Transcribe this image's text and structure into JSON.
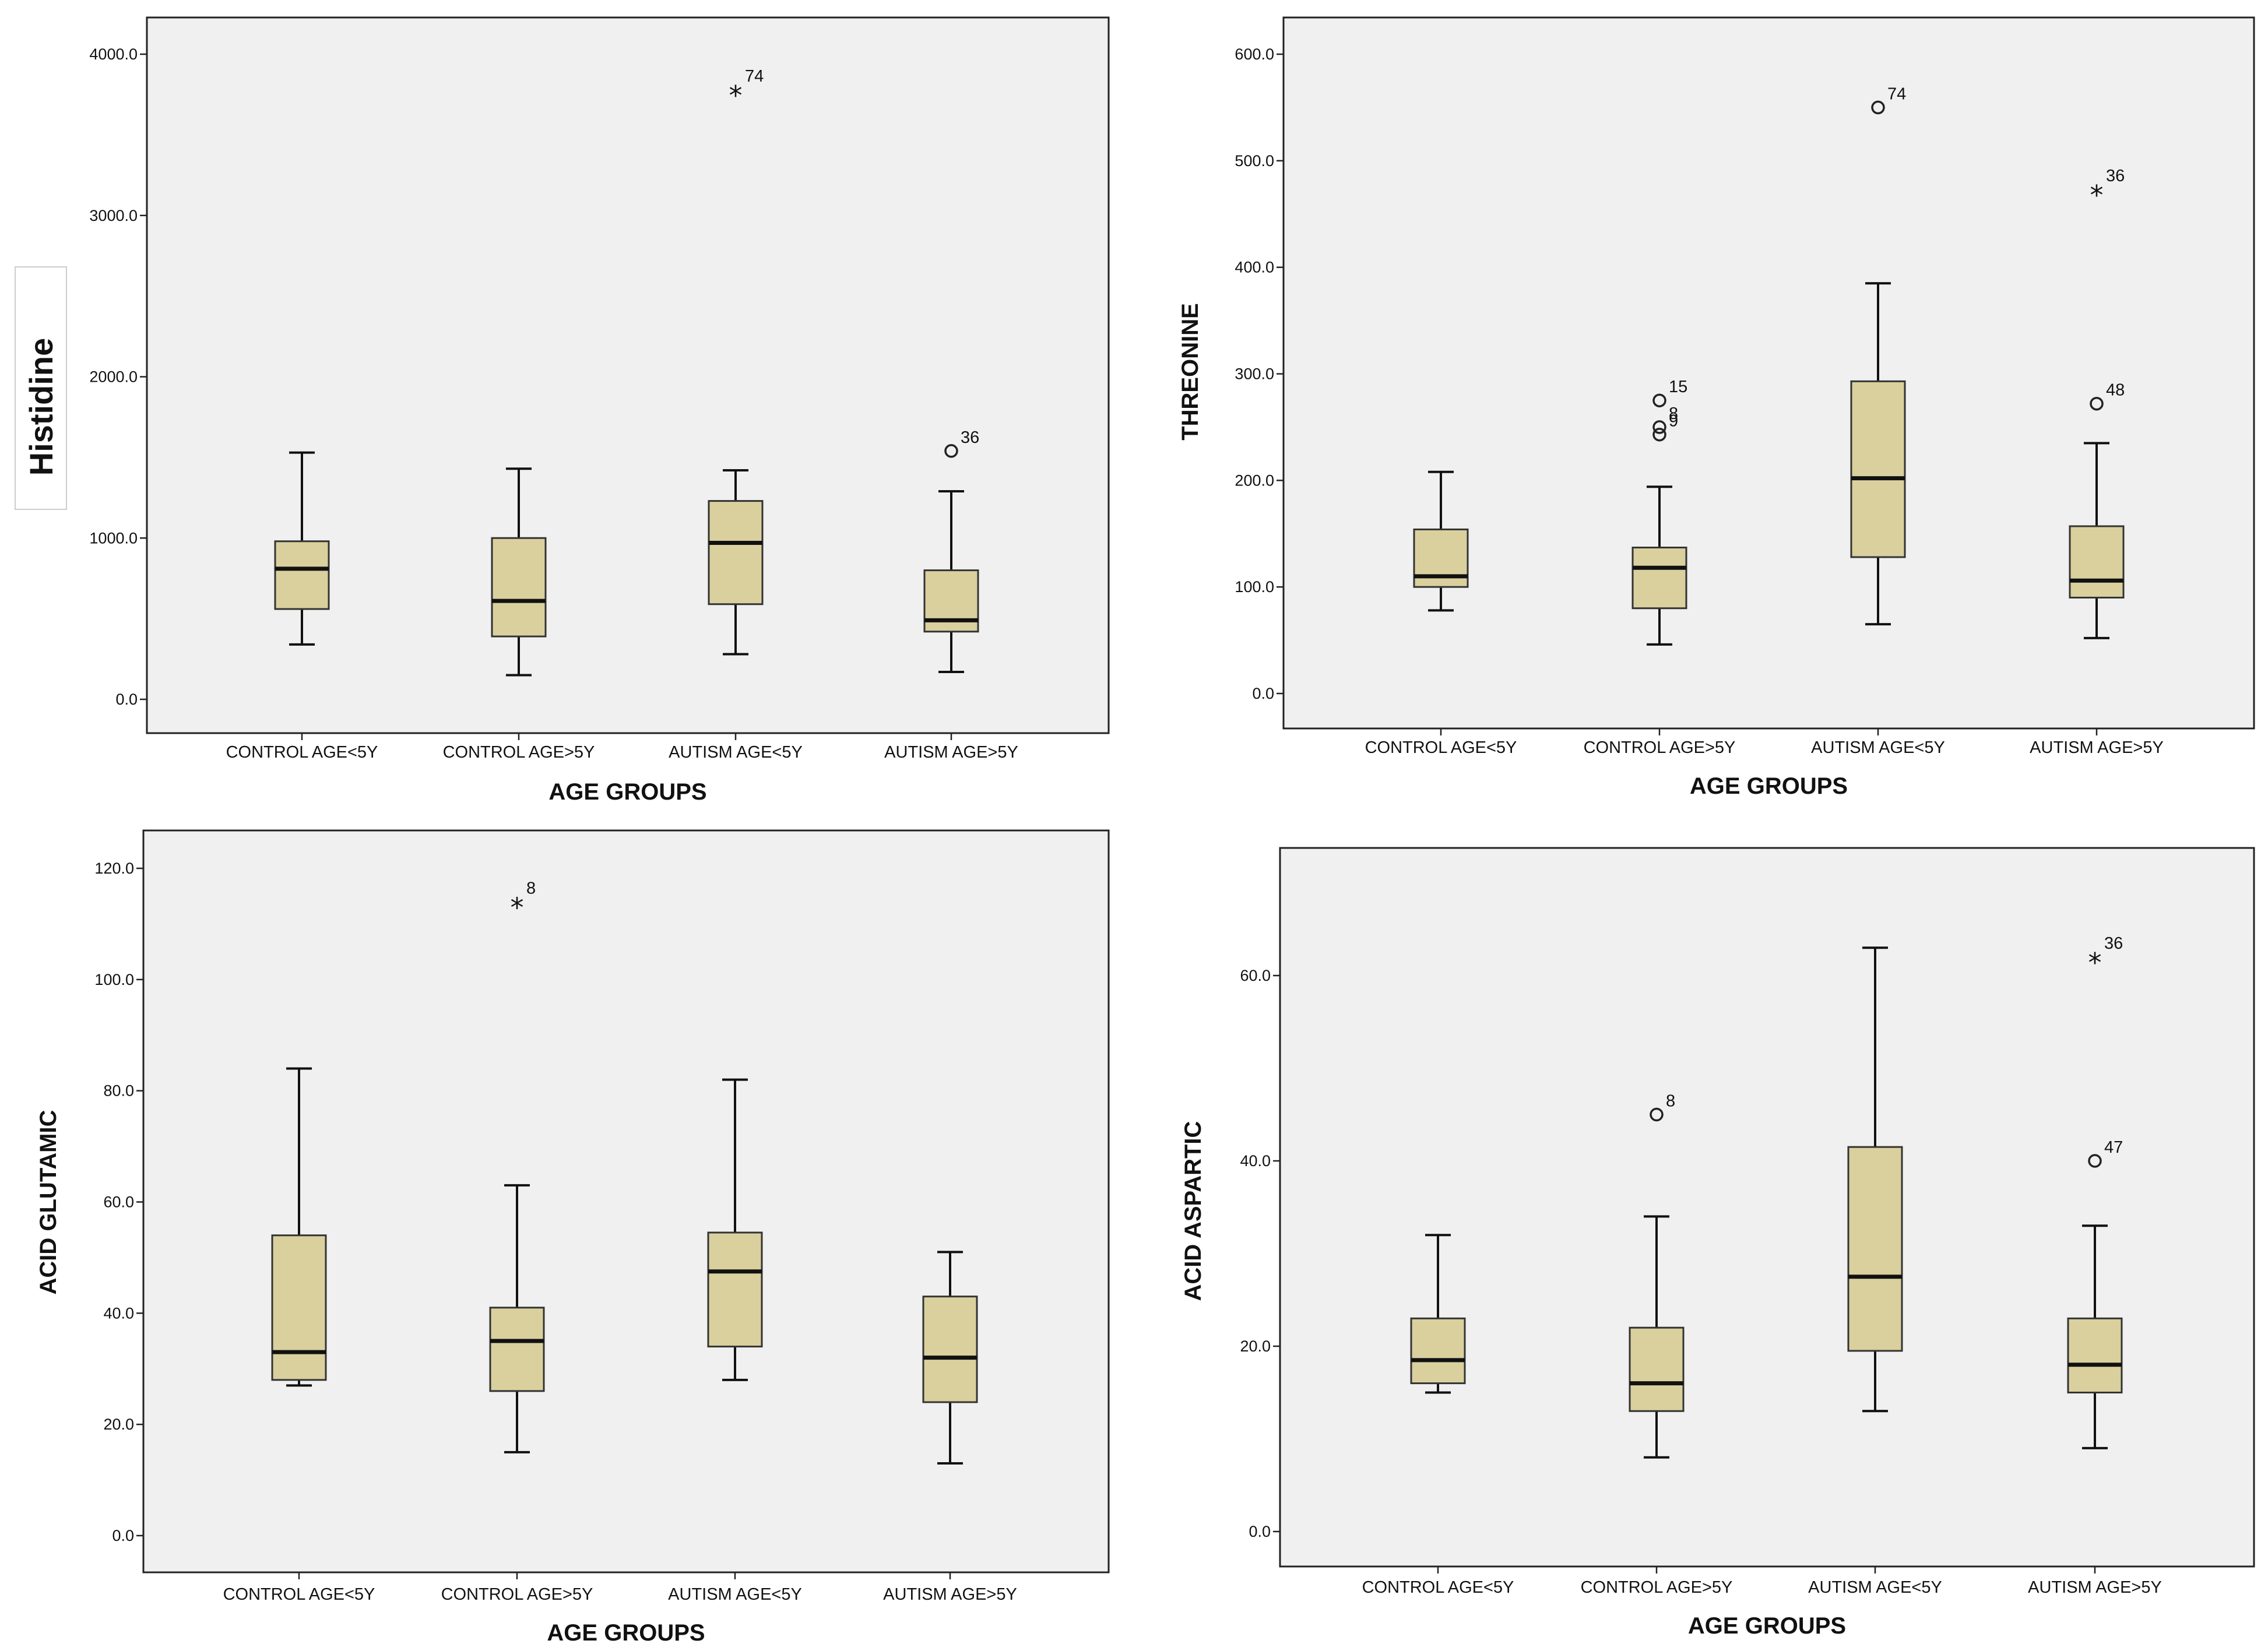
{
  "chart_data": [
    {
      "type": "boxplot",
      "xlabel": "AGE GROUPS",
      "ylabel": "Histidine",
      "ylim": [
        0,
        4000
      ],
      "yticks": [
        0,
        1000,
        2000,
        3000,
        4000
      ],
      "ytick_labels": [
        "0.0",
        "1000.0",
        "2000.0",
        "3000.0",
        "4000.0"
      ],
      "categories": [
        "CONTROL AGE<5Y",
        "CONTROL AGE>5Y",
        "AUTISM AGE<5Y",
        "AUTISM AGE>5Y"
      ],
      "boxes": [
        {
          "min": 340,
          "q1": 560,
          "median": 810,
          "q3": 980,
          "max": 1530
        },
        {
          "min": 150,
          "q1": 390,
          "median": 610,
          "q3": 1000,
          "max": 1430
        },
        {
          "min": 280,
          "q1": 590,
          "median": 970,
          "q3": 1230,
          "max": 1420
        },
        {
          "min": 170,
          "q1": 420,
          "median": 490,
          "q3": 800,
          "max": 1290
        }
      ],
      "outliers": [
        {
          "category": 2,
          "value": 3780,
          "label": "74",
          "marker": "star"
        },
        {
          "category": 3,
          "value": 1540,
          "label": "36",
          "marker": "circle"
        }
      ]
    },
    {
      "type": "boxplot",
      "xlabel": "AGE GROUPS",
      "ylabel": "THREONINE",
      "ylim": [
        0,
        600
      ],
      "yticks": [
        0,
        100,
        200,
        300,
        400,
        500,
        600
      ],
      "ytick_labels": [
        "0.0",
        "100.0",
        "200.0",
        "300.0",
        "400.0",
        "500.0",
        "600.0"
      ],
      "categories": [
        "CONTROL AGE<5Y",
        "CONTROL AGE>5Y",
        "AUTISM AGE<5Y",
        "AUTISM AGE>5Y"
      ],
      "boxes": [
        {
          "min": 78,
          "q1": 100,
          "median": 110,
          "q3": 154,
          "max": 208
        },
        {
          "min": 46,
          "q1": 80,
          "median": 118,
          "q3": 137,
          "max": 194
        },
        {
          "min": 65,
          "q1": 128,
          "median": 202,
          "q3": 293,
          "max": 385
        },
        {
          "min": 52,
          "q1": 90,
          "median": 106,
          "q3": 157,
          "max": 235
        }
      ],
      "outliers": [
        {
          "category": 1,
          "value": 275,
          "label": "15",
          "marker": "circle"
        },
        {
          "category": 1,
          "value": 250,
          "label": "8",
          "marker": "circle"
        },
        {
          "category": 1,
          "value": 243,
          "label": "9",
          "marker": "circle"
        },
        {
          "category": 2,
          "value": 550,
          "label": "74",
          "marker": "circle"
        },
        {
          "category": 3,
          "value": 473,
          "label": "36",
          "marker": "star"
        },
        {
          "category": 3,
          "value": 272,
          "label": "48",
          "marker": "circle"
        }
      ]
    },
    {
      "type": "boxplot",
      "xlabel": "AGE GROUPS",
      "ylabel": "ACID GLUTAMIC",
      "ylim": [
        0,
        120
      ],
      "yticks": [
        0,
        20,
        40,
        60,
        80,
        100,
        120
      ],
      "ytick_labels": [
        "0.0",
        "20.0",
        "40.0",
        "60.0",
        "80.0",
        "100.0",
        "120.0"
      ],
      "categories": [
        "CONTROL AGE<5Y",
        "CONTROL AGE>5Y",
        "AUTISM AGE<5Y",
        "AUTISM AGE>5Y"
      ],
      "boxes": [
        {
          "min": 27,
          "q1": 28,
          "median": 33,
          "q3": 54,
          "max": 84
        },
        {
          "min": 15,
          "q1": 26,
          "median": 35,
          "q3": 41,
          "max": 63
        },
        {
          "min": 28,
          "q1": 34,
          "median": 47.5,
          "q3": 54.5,
          "max": 82
        },
        {
          "min": 13,
          "q1": 24,
          "median": 32,
          "q3": 43,
          "max": 51
        }
      ],
      "outliers": [
        {
          "category": 1,
          "value": 114,
          "label": "8",
          "marker": "star"
        }
      ]
    },
    {
      "type": "boxplot",
      "xlabel": "AGE GROUPS",
      "ylabel": "ACID ASPARTIC",
      "ylim": [
        0,
        60
      ],
      "yticks": [
        0,
        20,
        40,
        60
      ],
      "ytick_labels": [
        "0.0",
        "20.0",
        "40.0",
        "60.0"
      ],
      "categories": [
        "CONTROL AGE<5Y",
        "CONTROL AGE>5Y",
        "AUTISM AGE<5Y",
        "AUTISM AGE>5Y"
      ],
      "boxes": [
        {
          "min": 15,
          "q1": 16,
          "median": 18.5,
          "q3": 23,
          "max": 32
        },
        {
          "min": 8,
          "q1": 13,
          "median": 16,
          "q3": 22,
          "max": 34
        },
        {
          "min": 13,
          "q1": 19.5,
          "median": 27.5,
          "q3": 41.5,
          "max": 63
        },
        {
          "min": 9,
          "q1": 15,
          "median": 18,
          "q3": 23,
          "max": 33
        }
      ],
      "outliers": [
        {
          "category": 1,
          "value": 45,
          "label": "8",
          "marker": "circle"
        },
        {
          "category": 3,
          "value": 62,
          "label": "36",
          "marker": "star"
        },
        {
          "category": 3,
          "value": 40,
          "label": "47",
          "marker": "circle"
        }
      ]
    }
  ]
}
